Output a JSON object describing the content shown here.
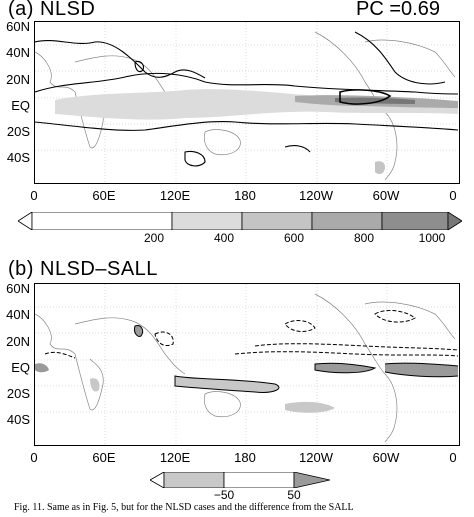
{
  "panels": [
    {
      "title": "(a)  NLSD",
      "pc_label": "PC =0.69",
      "y_ticks": [
        "60N",
        "40N",
        "20N",
        "EQ",
        "20S",
        "40S"
      ],
      "x_ticks": [
        "0",
        "60E",
        "120E",
        "180",
        "120W",
        "60W",
        "0"
      ],
      "colorbar": {
        "levels": [
          "200",
          "400",
          "600",
          "800",
          "1000"
        ],
        "colors": [
          "#ffffff",
          "#dcdcdc",
          "#c4c4c4",
          "#aaaaaa",
          "#8e8e8e",
          "#777777"
        ]
      }
    },
    {
      "title": "(b)  NLSD–SALL",
      "y_ticks": [
        "60N",
        "40N",
        "20N",
        "EQ",
        "20S",
        "40S"
      ],
      "x_ticks": [
        "0",
        "60E",
        "120E",
        "180",
        "120W",
        "60W",
        "0"
      ],
      "colorbar": {
        "levels": [
          "−50",
          "50"
        ],
        "colors": [
          "#ffffff",
          "#c8c8c8",
          "#ffffff",
          "#9a9a9a"
        ]
      }
    }
  ],
  "caption": "Fig. 11. Same as in Fig. 5, but for the NLSD cases and the difference from the SALL",
  "chart_data": [
    {
      "type": "heatmap",
      "title": "(a) NLSD",
      "annotation": "PC =0.69",
      "x_range": [
        "0",
        "0"
      ],
      "x_ticks": [
        "0",
        "60E",
        "120E",
        "180",
        "120W",
        "60W",
        "0"
      ],
      "y_ticks": [
        "60N",
        "40N",
        "20N",
        "EQ",
        "20S",
        "40S"
      ],
      "contour_levels": [
        200,
        400,
        600,
        800,
        1000
      ]
    },
    {
      "type": "heatmap",
      "title": "(b) NLSD–SALL",
      "x_ticks": [
        "0",
        "60E",
        "120E",
        "180",
        "120W",
        "60W",
        "0"
      ],
      "y_ticks": [
        "60N",
        "40N",
        "20N",
        "EQ",
        "20S",
        "40S"
      ],
      "contour_levels": [
        -50,
        50
      ]
    }
  ]
}
